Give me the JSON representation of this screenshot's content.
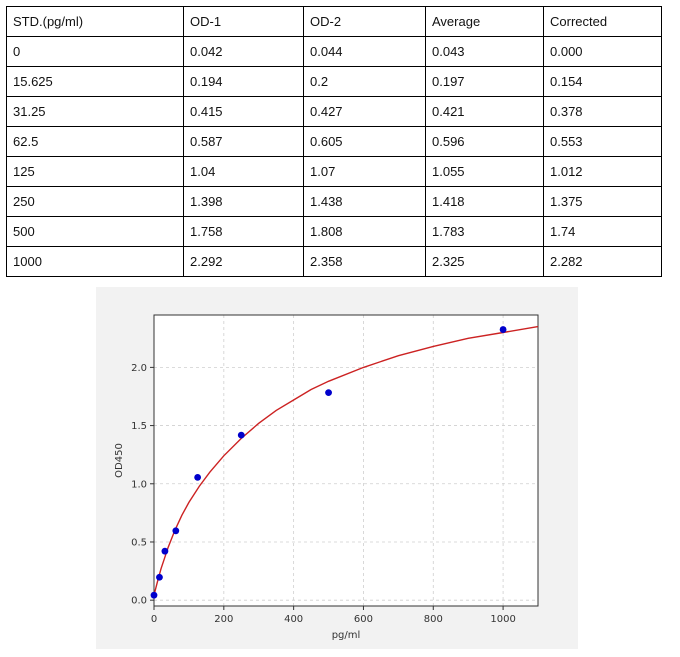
{
  "table": {
    "headers": [
      "STD.(pg/ml)",
      "OD-1",
      "OD-2",
      "Average",
      "Corrected"
    ],
    "rows": [
      [
        "0",
        "0.042",
        "0.044",
        "0.043",
        "0.000"
      ],
      [
        "15.625",
        "0.194",
        "0.2",
        "0.197",
        "0.154"
      ],
      [
        "31.25",
        "0.415",
        "0.427",
        "0.421",
        "0.378"
      ],
      [
        "62.5",
        "0.587",
        "0.605",
        "0.596",
        "0.553"
      ],
      [
        "125",
        "1.04",
        "1.07",
        "1.055",
        "1.012"
      ],
      [
        "250",
        "1.398",
        "1.438",
        "1.418",
        "1.375"
      ],
      [
        "500",
        "1.758",
        "1.808",
        "1.783",
        "1.74"
      ],
      [
        "1000",
        "2.292",
        "2.358",
        "2.325",
        "2.282"
      ]
    ]
  },
  "chart_data": {
    "type": "scatter",
    "title": "",
    "xlabel": "pg/ml",
    "ylabel": "OD450",
    "xlim": [
      0,
      1100
    ],
    "ylim": [
      -0.05,
      2.45
    ],
    "xticks": [
      0,
      200,
      400,
      600,
      800,
      1000
    ],
    "yticks": [
      0.0,
      0.5,
      1.0,
      1.5,
      2.0
    ],
    "grid": true,
    "point_color": "#0000cc",
    "curve_color": "#cc2222",
    "series": [
      {
        "x": [
          0,
          15.625,
          31.25,
          62.5,
          125,
          250,
          500,
          1000
        ],
        "y": [
          0.043,
          0.197,
          0.421,
          0.596,
          1.055,
          1.418,
          1.783,
          2.325
        ]
      }
    ],
    "fit_curve": {
      "x": [
        0,
        5,
        10,
        20,
        30,
        40,
        60,
        80,
        100,
        130,
        160,
        200,
        250,
        300,
        350,
        400,
        450,
        500,
        600,
        700,
        800,
        900,
        1000,
        1100
      ],
      "y": [
        0.043,
        0.1,
        0.16,
        0.27,
        0.36,
        0.45,
        0.6,
        0.73,
        0.84,
        0.98,
        1.1,
        1.24,
        1.39,
        1.52,
        1.63,
        1.72,
        1.81,
        1.88,
        2.0,
        2.1,
        2.18,
        2.25,
        2.3,
        2.35
      ]
    }
  }
}
